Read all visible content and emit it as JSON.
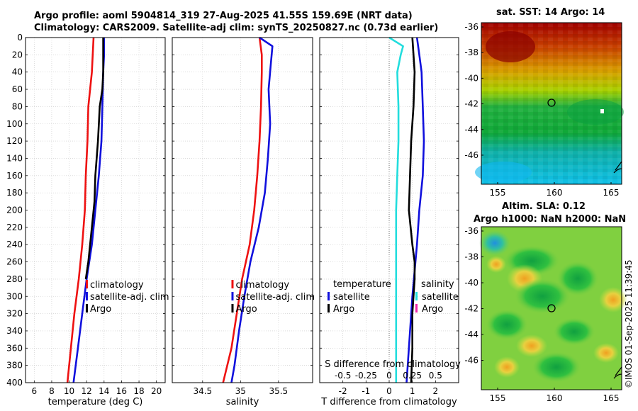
{
  "header": {
    "line1": "Argo profile: aoml 5904814_319 27-Aug-2025 41.55S 159.69E (NRT data)",
    "line2": "Climatology: CARS2009. Satellite-adj clim: synTS_20250827.nc (0.73d earlier)"
  },
  "side_label": "©IMOS 01-Sep-2025 11:39:45",
  "colors": {
    "clim": "#ee1111",
    "sat": "#1010dd",
    "argo": "#000000",
    "sat_s": "#22dddd",
    "argo_s": "#ee22aa"
  },
  "chart_data": [
    {
      "id": "temperature",
      "type": "line",
      "xlabel": "temperature (deg C)",
      "xlim": [
        5,
        21
      ],
      "xticks": [
        6,
        8,
        10,
        12,
        14,
        16,
        18,
        20
      ],
      "ylim": [
        0,
        400
      ],
      "yticks": [
        0,
        20,
        40,
        60,
        80,
        100,
        120,
        140,
        160,
        180,
        200,
        220,
        240,
        260,
        280,
        300,
        320,
        340,
        360,
        380,
        400
      ],
      "grid": true,
      "legend": [
        "climatology",
        "satellite-adj. clim",
        "Argo"
      ],
      "series": [
        {
          "name": "climatology",
          "points": [
            [
              12.8,
              0
            ],
            [
              12.7,
              20
            ],
            [
              12.6,
              40
            ],
            [
              12.4,
              60
            ],
            [
              12.2,
              80
            ],
            [
              12.1,
              120
            ],
            [
              11.9,
              160
            ],
            [
              11.8,
              200
            ],
            [
              11.5,
              240
            ],
            [
              11.1,
              280
            ],
            [
              10.6,
              320
            ],
            [
              10.2,
              360
            ],
            [
              9.8,
              400
            ]
          ]
        },
        {
          "name": "satellite-adj. clim",
          "points": [
            [
              14.0,
              0
            ],
            [
              14.0,
              20
            ],
            [
              13.9,
              40
            ],
            [
              13.8,
              80
            ],
            [
              13.7,
              120
            ],
            [
              13.4,
              160
            ],
            [
              13.0,
              200
            ],
            [
              12.6,
              240
            ],
            [
              12.0,
              280
            ],
            [
              11.5,
              320
            ],
            [
              11.0,
              360
            ],
            [
              10.5,
              400
            ]
          ]
        },
        {
          "name": "Argo",
          "points": [
            [
              13.9,
              0
            ],
            [
              13.9,
              20
            ],
            [
              13.9,
              40
            ],
            [
              13.8,
              60
            ],
            [
              13.5,
              80
            ],
            [
              13.3,
              120
            ],
            [
              13.0,
              160
            ],
            [
              12.9,
              190
            ],
            [
              12.6,
              220
            ],
            [
              12.2,
              260
            ],
            [
              11.9,
              280
            ]
          ]
        }
      ]
    },
    {
      "id": "salinity",
      "type": "line",
      "xlabel": "salinity",
      "xlim": [
        34.1,
        35.95
      ],
      "xticks": [
        34.5,
        35,
        35.5
      ],
      "ylim": [
        0,
        400
      ],
      "grid": true,
      "legend": [
        "climatology",
        "satellite-adj. clim",
        "Argo"
      ],
      "series": [
        {
          "name": "climatology",
          "points": [
            [
              35.25,
              0
            ],
            [
              35.28,
              20
            ],
            [
              35.28,
              40
            ],
            [
              35.27,
              80
            ],
            [
              35.25,
              120
            ],
            [
              35.22,
              160
            ],
            [
              35.18,
              200
            ],
            [
              35.12,
              240
            ],
            [
              35.02,
              280
            ],
            [
              34.95,
              320
            ],
            [
              34.88,
              360
            ],
            [
              34.77,
              400
            ]
          ]
        },
        {
          "name": "satellite-adj. clim",
          "points": [
            [
              35.25,
              0
            ],
            [
              35.42,
              10
            ],
            [
              35.4,
              30
            ],
            [
              35.37,
              60
            ],
            [
              35.39,
              100
            ],
            [
              35.36,
              140
            ],
            [
              35.32,
              180
            ],
            [
              35.24,
              220
            ],
            [
              35.13,
              260
            ],
            [
              35.05,
              300
            ],
            [
              34.98,
              340
            ],
            [
              34.92,
              380
            ],
            [
              34.88,
              400
            ]
          ]
        },
        {
          "name": "Argo",
          "points": []
        }
      ]
    },
    {
      "id": "difference",
      "type": "line",
      "xlabel": "T difference from climatology",
      "xlabel_top": "S difference from climatology",
      "xlim": [
        -3,
        3
      ],
      "xticks": [
        -2,
        -1,
        0,
        1,
        2
      ],
      "xtick_labels": [
        "-2",
        "-1",
        "0",
        "1",
        "2"
      ],
      "top_xticks": [
        -2,
        -1,
        0,
        1,
        2
      ],
      "top_xtick_labels": [
        "-0.5",
        "-0.25",
        "0",
        "0.25",
        "0.5"
      ],
      "ylim": [
        0,
        400
      ],
      "grid": true,
      "legend_left": {
        "title": "temperature",
        "items": [
          "satellite",
          "Argo"
        ]
      },
      "legend_right": {
        "title": "salinity",
        "items": [
          "satellite",
          "Argo"
        ]
      },
      "series": [
        {
          "name": "temperature satellite",
          "points": [
            [
              1.2,
              0
            ],
            [
              1.3,
              20
            ],
            [
              1.4,
              40
            ],
            [
              1.45,
              80
            ],
            [
              1.5,
              120
            ],
            [
              1.45,
              160
            ],
            [
              1.3,
              200
            ],
            [
              1.2,
              240
            ],
            [
              1.0,
              300
            ],
            [
              0.85,
              360
            ],
            [
              0.75,
              400
            ]
          ]
        },
        {
          "name": "temperature Argo",
          "points": [
            [
              1.0,
              0
            ],
            [
              1.1,
              40
            ],
            [
              1.05,
              80
            ],
            [
              0.95,
              120
            ],
            [
              0.9,
              160
            ],
            [
              0.85,
              200
            ],
            [
              1.0,
              240
            ],
            [
              1.1,
              260
            ],
            [
              1.1,
              280
            ],
            [
              1.0,
              320
            ],
            [
              1.0,
              360
            ],
            [
              0.95,
              400
            ]
          ]
        },
        {
          "name": "salinity satellite",
          "points": [
            [
              0.0,
              0
            ],
            [
              0.6,
              10
            ],
            [
              0.5,
              20
            ],
            [
              0.35,
              40
            ],
            [
              0.4,
              80
            ],
            [
              0.4,
              120
            ],
            [
              0.35,
              160
            ],
            [
              0.3,
              200
            ],
            [
              0.3,
              240
            ],
            [
              0.3,
              300
            ],
            [
              0.3,
              360
            ],
            [
              0.3,
              400
            ]
          ]
        }
      ]
    }
  ],
  "maps": [
    {
      "title": "sat. SST: 14 Argo: 14",
      "xticks": [
        "155",
        "160",
        "165"
      ],
      "yticks": [
        "-36",
        "-38",
        "-40",
        "-42",
        "-44",
        "-46"
      ]
    },
    {
      "title1": "Altim. SLA: 0.12",
      "title2": "Argo h1000: NaN h2000: NaN",
      "xticks": [
        "155",
        "160",
        "165"
      ],
      "yticks": [
        "-36",
        "-38",
        "-40",
        "-42",
        "-44",
        "-46"
      ]
    }
  ]
}
